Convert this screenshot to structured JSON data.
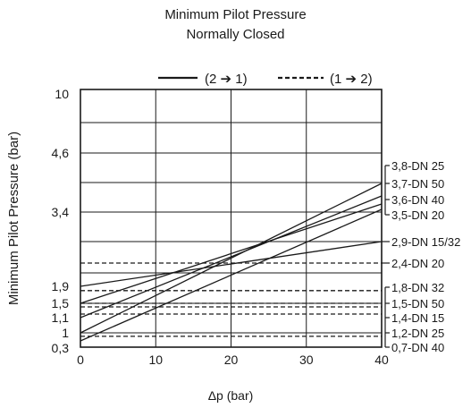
{
  "chart_data": {
    "type": "line",
    "title": "Minimum Pilot Pressure",
    "subtitle": "Normally Closed",
    "xlabel": "Δp (bar)",
    "ylabel": "Minimum Pilot Pressure (bar)",
    "xlim": [
      0,
      40
    ],
    "xticks": [
      "0",
      "10",
      "20",
      "30",
      "40"
    ],
    "y_tick_labels": [
      "10",
      "4,6",
      "3,4",
      "1,9",
      "1,5",
      "1,1",
      "1",
      "0,3"
    ],
    "grid": true,
    "legend": {
      "position": "top",
      "entries": [
        {
          "label": "(2 ➔ 1)",
          "style": "solid"
        },
        {
          "label": "(1 ➔ 2)",
          "style": "dashed"
        }
      ]
    },
    "series": [
      {
        "name": "3,8-DN 25",
        "style": "solid",
        "x": [
          0,
          40
        ],
        "y": [
          1,
          3.8
        ]
      },
      {
        "name": "3,7-DN 50",
        "style": "solid",
        "x": [
          0,
          40
        ],
        "y": [
          1.1,
          3.7
        ]
      },
      {
        "name": "3,6-DN 40",
        "style": "solid",
        "x": [
          0,
          40
        ],
        "y": [
          1.5,
          3.6
        ]
      },
      {
        "name": "3,5-DN 20",
        "style": "solid",
        "x": [
          0,
          40
        ],
        "y": [
          0.3,
          3.5
        ]
      },
      {
        "name": "2,9-DN 15/32",
        "style": "solid",
        "x": [
          0,
          40
        ],
        "y": [
          1.9,
          2.9
        ]
      },
      {
        "name": "2,4-DN 20",
        "style": "dashed",
        "x": [
          0,
          40
        ],
        "y": [
          2.4,
          2.4
        ]
      },
      {
        "name": "1,8-DN 32",
        "style": "dashed",
        "x": [
          0,
          40
        ],
        "y": [
          1.8,
          1.8
        ]
      },
      {
        "name": "1,5-DN 50",
        "style": "dashed",
        "x": [
          0,
          40
        ],
        "y": [
          1.5,
          1.5
        ]
      },
      {
        "name": "1,4-DN 15",
        "style": "dashed",
        "x": [
          0,
          40
        ],
        "y": [
          1.4,
          1.4
        ]
      },
      {
        "name": "1,2-DN 25",
        "style": "dashed",
        "x": [
          0,
          40
        ],
        "y": [
          1.2,
          1.2
        ]
      },
      {
        "name": "0,7-DN 40",
        "style": "dashed",
        "x": [
          0,
          40
        ],
        "y": [
          0.7,
          0.7
        ]
      }
    ]
  }
}
